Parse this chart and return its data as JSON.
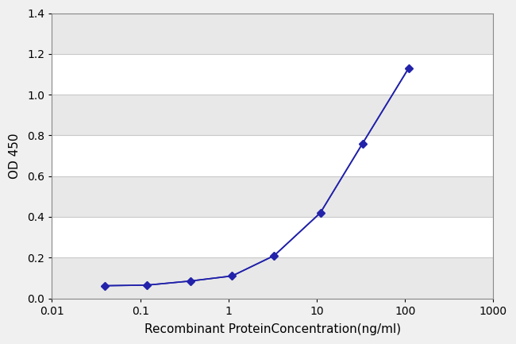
{
  "x": [
    0.04,
    0.12,
    0.37,
    1.1,
    3.3,
    11,
    33,
    110
  ],
  "y": [
    0.062,
    0.065,
    0.085,
    0.11,
    0.21,
    0.42,
    0.76,
    1.13
  ],
  "xlabel": "Recombinant ProteinConcentration(ng/ml)",
  "ylabel": "OD 450",
  "xlim": [
    0.01,
    1000
  ],
  "ylim": [
    0,
    1.4
  ],
  "yticks": [
    0,
    0.2,
    0.4,
    0.6,
    0.8,
    1.0,
    1.2,
    1.4
  ],
  "xticks": [
    0.01,
    0.1,
    1,
    10,
    100,
    1000
  ],
  "xtick_labels": [
    "0.01",
    "0.1",
    "1",
    "10",
    "100",
    "1000"
  ],
  "line_color": "#2222aa",
  "marker_color": "#2222aa",
  "marker": "D",
  "marker_size": 5,
  "line_width": 1.2,
  "fig_bg_color": "#f0f0f0",
  "plot_bg_color": "#ffffff",
  "grid_color": "#c8c8c8",
  "spine_color": "#888888",
  "xlabel_fontsize": 11,
  "ylabel_fontsize": 11,
  "tick_fontsize": 10
}
